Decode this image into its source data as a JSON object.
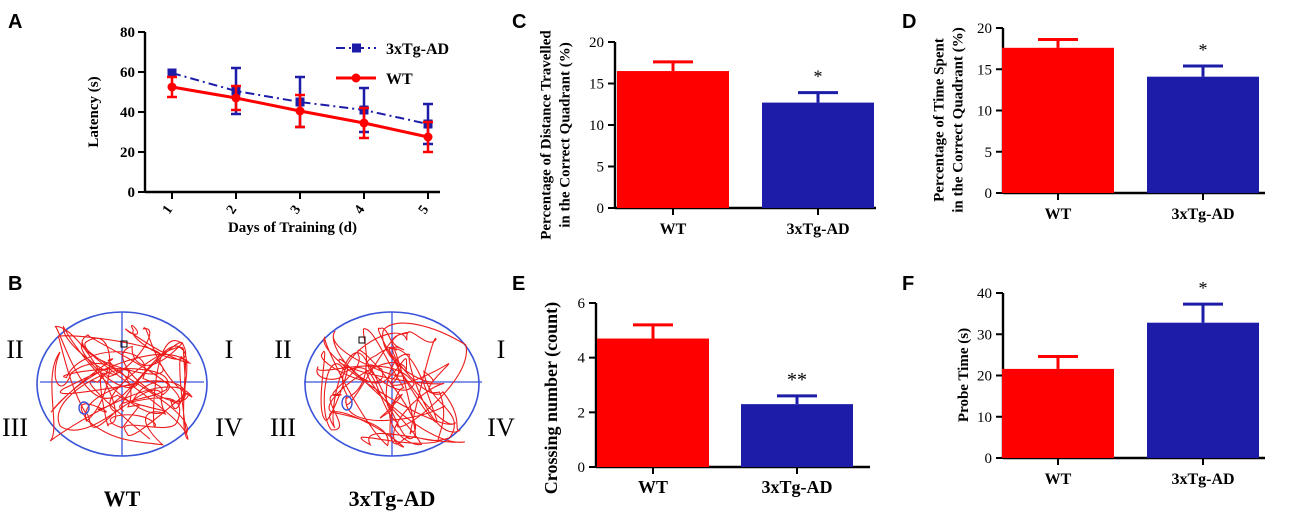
{
  "colors": {
    "wt": "#ff0000",
    "tg": "#1c1ca8",
    "axis": "#000000",
    "track": "#ee1c1c",
    "pool": "#3a54d8"
  },
  "panels": {
    "A": {
      "letter": "A",
      "chart_data": {
        "type": "line",
        "x": [
          1,
          2,
          3,
          4,
          5
        ],
        "x_tick_labels": [
          "1",
          "2",
          "3",
          "4",
          "5"
        ],
        "series": [
          {
            "name": "3xTg-AD",
            "values": [
              59.5,
              50.5,
              45,
              41,
              34
            ],
            "errors": [
              0,
              11.5,
              12.5,
              11,
              10
            ],
            "style": "dash-dot",
            "marker": "square",
            "color": "#1c1ca8"
          },
          {
            "name": "WT",
            "values": [
              52.5,
              47,
              40.5,
              34.5,
              27.5
            ],
            "errors": [
              5,
              6,
              8,
              7.5,
              7.5
            ],
            "style": "solid",
            "marker": "circle",
            "color": "#ff0000"
          }
        ],
        "xlabel": "Days of Training (d)",
        "ylabel": "Latency (s)",
        "ylim": [
          0,
          80
        ],
        "yticks": [
          0,
          20,
          40,
          60,
          80
        ],
        "legend_position": "top-right"
      }
    },
    "B": {
      "letter": "B",
      "quadrant_labels": {
        "q1": "I",
        "q2": "II",
        "q3": "III",
        "q4": "IV"
      },
      "tracks": [
        {
          "group": "WT"
        },
        {
          "group": "3xTg-AD"
        }
      ]
    },
    "C": {
      "letter": "C",
      "chart_data": {
        "type": "bar",
        "categories": [
          "WT",
          "3xTg-AD"
        ],
        "values": [
          16.5,
          12.7
        ],
        "errors": [
          1.1,
          1.2
        ],
        "significance": [
          "",
          "*"
        ],
        "colors": [
          "#ff0000",
          "#1c1ca8"
        ],
        "ylabel_lines": [
          "Percentage of Distance Travelled",
          "in the Correct Quadrant (%)"
        ],
        "ylim": [
          0,
          20
        ],
        "yticks": [
          0,
          5,
          10,
          15,
          20
        ]
      }
    },
    "D": {
      "letter": "D",
      "chart_data": {
        "type": "bar",
        "categories": [
          "WT",
          "3xTg-AD"
        ],
        "values": [
          17.6,
          14.1
        ],
        "errors": [
          1.0,
          1.3
        ],
        "significance": [
          "",
          "*"
        ],
        "colors": [
          "#ff0000",
          "#1c1ca8"
        ],
        "ylabel_lines": [
          "Percentage of Time Spent",
          "in the Correct Quadrant (%)"
        ],
        "ylim": [
          0,
          20
        ],
        "yticks": [
          0,
          5,
          10,
          15,
          20
        ]
      }
    },
    "E": {
      "letter": "E",
      "chart_data": {
        "type": "bar",
        "categories": [
          "WT",
          "3xTg-AD"
        ],
        "values": [
          4.7,
          2.3
        ],
        "errors": [
          0.5,
          0.3
        ],
        "significance": [
          "",
          "**"
        ],
        "colors": [
          "#ff0000",
          "#1c1ca8"
        ],
        "ylabel_lines": [
          "Crossing number (count)"
        ],
        "ylim": [
          0,
          6
        ],
        "yticks": [
          0,
          2,
          4,
          6
        ]
      }
    },
    "F": {
      "letter": "F",
      "chart_data": {
        "type": "bar",
        "categories": [
          "WT",
          "3xTg-AD"
        ],
        "values": [
          21.6,
          32.8
        ],
        "errors": [
          3.0,
          4.5
        ],
        "significance": [
          "",
          "*"
        ],
        "colors": [
          "#ff0000",
          "#1c1ca8"
        ],
        "ylabel_lines": [
          "Probe Time (s)"
        ],
        "ylim": [
          0,
          40
        ],
        "yticks": [
          0,
          10,
          20,
          30,
          40
        ]
      }
    }
  }
}
